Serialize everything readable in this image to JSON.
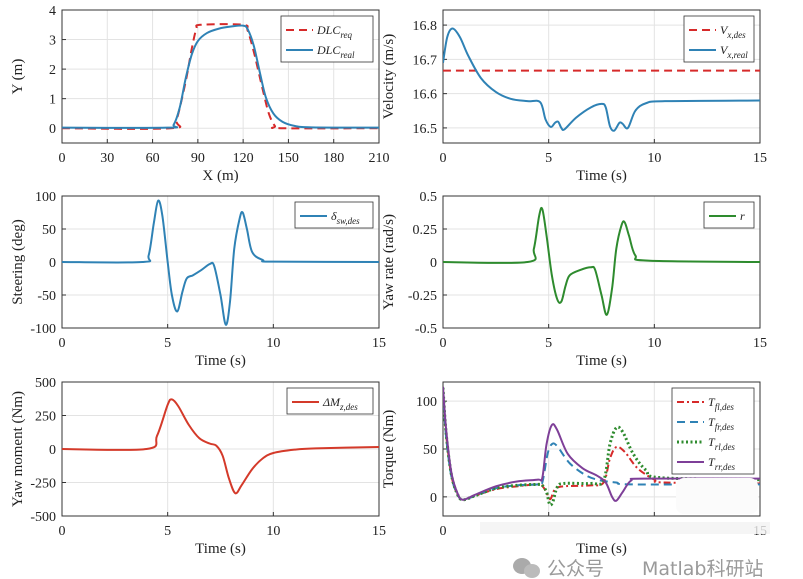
{
  "chart_data": [
    {
      "type": "line",
      "xlabel": "X (m)",
      "ylabel": "Y (m)",
      "xlim": [
        0,
        210
      ],
      "ylim": [
        -0.5,
        4
      ],
      "xticks": [
        0,
        30,
        60,
        90,
        120,
        150,
        180,
        210
      ],
      "yticks": [
        0,
        1,
        2,
        3,
        4
      ],
      "grid": true,
      "legend": "top-right",
      "series": [
        {
          "name": "DLC",
          "sub": "req",
          "color": "#d62a2a",
          "style": "dashed",
          "points": [
            [
              0,
              0
            ],
            [
              72,
              0
            ],
            [
              76,
              0.3
            ],
            [
              82,
              1.6
            ],
            [
              86,
              2.7
            ],
            [
              89,
              3.35
            ],
            [
              92,
              3.5
            ],
            [
              120,
              3.5
            ],
            [
              123,
              3.3
            ],
            [
              127,
              2.6
            ],
            [
              133,
              1.3
            ],
            [
              137,
              0.5
            ],
            [
              141,
              0.08
            ],
            [
              145,
              0
            ],
            [
              210,
              0
            ]
          ]
        },
        {
          "name": "DLC",
          "sub": "real",
          "color": "#2f82b5",
          "style": "solid",
          "points": [
            [
              0,
              0.02
            ],
            [
              70,
              0.02
            ],
            [
              74,
              0.12
            ],
            [
              78,
              0.7
            ],
            [
              82,
              1.7
            ],
            [
              86,
              2.5
            ],
            [
              90,
              2.95
            ],
            [
              96,
              3.22
            ],
            [
              104,
              3.37
            ],
            [
              112,
              3.44
            ],
            [
              120,
              3.47
            ],
            [
              123,
              3.35
            ],
            [
              127,
              2.8
            ],
            [
              131,
              1.9
            ],
            [
              135,
              1.05
            ],
            [
              140,
              0.5
            ],
            [
              146,
              0.22
            ],
            [
              154,
              0.08
            ],
            [
              165,
              0.03
            ],
            [
              210,
              0.02
            ]
          ]
        }
      ]
    },
    {
      "type": "line",
      "xlabel": "Time (s)",
      "ylabel": "Velocity (m/s)",
      "xlim": [
        0,
        15
      ],
      "ylim": [
        16.456,
        16.844
      ],
      "xticks": [
        0,
        5,
        10,
        15
      ],
      "yticks": [
        16.5,
        16.6,
        16.7,
        16.8
      ],
      "grid": true,
      "legend": "top-right",
      "series": [
        {
          "name": "V",
          "sub": "x,des",
          "color": "#d62a2a",
          "style": "dashed",
          "points": [
            [
              0,
              16.667
            ],
            [
              15,
              16.667
            ]
          ]
        },
        {
          "name": "V",
          "sub": "x,real",
          "color": "#2f82b5",
          "style": "solid",
          "points": [
            [
              0,
              16.69
            ],
            [
              0.2,
              16.765
            ],
            [
              0.45,
              16.79
            ],
            [
              0.8,
              16.765
            ],
            [
              1.2,
              16.71
            ],
            [
              1.8,
              16.645
            ],
            [
              2.5,
              16.605
            ],
            [
              3.2,
              16.585
            ],
            [
              4,
              16.578
            ],
            [
              4.6,
              16.575
            ],
            [
              4.85,
              16.525
            ],
            [
              5.1,
              16.503
            ],
            [
              5.3,
              16.515
            ],
            [
              5.45,
              16.518
            ],
            [
              5.6,
              16.5
            ],
            [
              5.75,
              16.496
            ],
            [
              6.3,
              16.53
            ],
            [
              7,
              16.56
            ],
            [
              7.5,
              16.57
            ],
            [
              7.7,
              16.56
            ],
            [
              7.9,
              16.505
            ],
            [
              8.1,
              16.492
            ],
            [
              8.35,
              16.515
            ],
            [
              8.5,
              16.512
            ],
            [
              8.75,
              16.5
            ],
            [
              9.1,
              16.55
            ],
            [
              9.6,
              16.572
            ],
            [
              10.5,
              16.578
            ],
            [
              15,
              16.58
            ]
          ]
        }
      ]
    },
    {
      "type": "line",
      "xlabel": "Time (s)",
      "ylabel": "Steering (deg)",
      "xlim": [
        0,
        15
      ],
      "ylim": [
        -100,
        100
      ],
      "xticks": [
        0,
        5,
        10,
        15
      ],
      "yticks": [
        -100,
        -50,
        0,
        50,
        100
      ],
      "grid": true,
      "legend": "top-right",
      "series": [
        {
          "name": "δ",
          "sub": "sw,des",
          "color": "#2f82b5",
          "style": "solid",
          "points": [
            [
              0,
              0
            ],
            [
              3.8,
              0
            ],
            [
              4.1,
              10
            ],
            [
              4.35,
              60
            ],
            [
              4.55,
              93
            ],
            [
              4.75,
              70
            ],
            [
              5,
              0
            ],
            [
              5.2,
              -50
            ],
            [
              5.45,
              -75
            ],
            [
              5.7,
              -45
            ],
            [
              5.9,
              -25
            ],
            [
              6.2,
              -20
            ],
            [
              6.6,
              -12
            ],
            [
              7,
              -3
            ],
            [
              7.2,
              -6
            ],
            [
              7.5,
              -50
            ],
            [
              7.75,
              -95
            ],
            [
              7.95,
              -60
            ],
            [
              8.15,
              20
            ],
            [
              8.4,
              65
            ],
            [
              8.55,
              75
            ],
            [
              8.75,
              50
            ],
            [
              9,
              15
            ],
            [
              9.5,
              3
            ],
            [
              10,
              0.5
            ],
            [
              15,
              0
            ]
          ]
        }
      ]
    },
    {
      "type": "line",
      "xlabel": "Time (s)",
      "ylabel": "Yaw rate (rad/s)",
      "xlim": [
        0,
        15
      ],
      "ylim": [
        -0.5,
        0.5
      ],
      "xticks": [
        0,
        5,
        10,
        15
      ],
      "yticks": [
        -0.5,
        -0.25,
        0,
        0.25,
        0.5
      ],
      "grid": true,
      "legend": "top-right",
      "series": [
        {
          "name": "r",
          "sub": "",
          "color": "#2e8b2e",
          "style": "solid",
          "points": [
            [
              0,
              0
            ],
            [
              4,
              0
            ],
            [
              4.3,
              0.1
            ],
            [
              4.55,
              0.35
            ],
            [
              4.7,
              0.4
            ],
            [
              4.9,
              0.2
            ],
            [
              5.15,
              -0.1
            ],
            [
              5.4,
              -0.28
            ],
            [
              5.6,
              -0.3
            ],
            [
              5.8,
              -0.18
            ],
            [
              6,
              -0.1
            ],
            [
              6.5,
              -0.06
            ],
            [
              7,
              -0.04
            ],
            [
              7.2,
              -0.06
            ],
            [
              7.5,
              -0.25
            ],
            [
              7.75,
              -0.4
            ],
            [
              8,
              -0.2
            ],
            [
              8.2,
              0.1
            ],
            [
              8.45,
              0.28
            ],
            [
              8.6,
              0.3
            ],
            [
              8.8,
              0.2
            ],
            [
              9.1,
              0.05
            ],
            [
              9.7,
              0.01
            ],
            [
              15,
              0
            ]
          ]
        }
      ]
    },
    {
      "type": "line",
      "xlabel": "Time (s)",
      "ylabel": "Yaw moment (Nm)",
      "xlim": [
        0,
        15
      ],
      "ylim": [
        -500,
        500
      ],
      "xticks": [
        0,
        5,
        10,
        15
      ],
      "yticks": [
        -500,
        -250,
        0,
        250,
        500
      ],
      "grid": true,
      "legend": "top-right",
      "series": [
        {
          "name": "ΔM",
          "sub": "z,des",
          "color": "#d43a2a",
          "style": "solid",
          "points": [
            [
              0,
              0
            ],
            [
              4,
              0
            ],
            [
              4.5,
              100
            ],
            [
              5,
              330
            ],
            [
              5.2,
              370
            ],
            [
              5.5,
              320
            ],
            [
              6,
              180
            ],
            [
              6.5,
              80
            ],
            [
              7,
              40
            ],
            [
              7.3,
              25
            ],
            [
              7.6,
              -50
            ],
            [
              7.9,
              -220
            ],
            [
              8.2,
              -330
            ],
            [
              8.5,
              -270
            ],
            [
              9,
              -150
            ],
            [
              9.5,
              -70
            ],
            [
              10,
              -30
            ],
            [
              11,
              -5
            ],
            [
              12,
              5
            ],
            [
              15,
              15
            ]
          ]
        }
      ]
    },
    {
      "type": "line",
      "xlabel": "Time (s)",
      "ylabel": "Torque (Nm)",
      "xlim": [
        0,
        15
      ],
      "ylim": [
        -20,
        120
      ],
      "xticks": [
        0,
        5,
        10,
        15
      ],
      "xtick_labels": [
        "0",
        "",
        "",
        "15"
      ],
      "yticks": [
        0,
        50,
        100
      ],
      "grid": true,
      "legend": "top-right",
      "series": [
        {
          "name": "T",
          "sub": "fl,des",
          "color": "#d62a2a",
          "style": "dashdot",
          "points": [
            [
              0,
              112
            ],
            [
              0.15,
              65
            ],
            [
              0.4,
              22
            ],
            [
              0.7,
              2
            ],
            [
              0.95,
              -3
            ],
            [
              1.5,
              1
            ],
            [
              2.5,
              8
            ],
            [
              3.5,
              11
            ],
            [
              4.5,
              13
            ],
            [
              4.75,
              10
            ],
            [
              5,
              0
            ],
            [
              5.1,
              -2
            ],
            [
              5.3,
              8
            ],
            [
              5.7,
              11
            ],
            [
              7,
              12
            ],
            [
              7.6,
              15
            ],
            [
              7.9,
              40
            ],
            [
              8.2,
              52
            ],
            [
              8.6,
              47
            ],
            [
              9.2,
              30
            ],
            [
              10,
              18
            ],
            [
              10.5,
              15
            ],
            [
              15,
              14
            ]
          ]
        },
        {
          "name": "T",
          "sub": "fr,des",
          "color": "#2f82b5",
          "style": "dashed",
          "points": [
            [
              0,
              110
            ],
            [
              0.15,
              62
            ],
            [
              0.4,
              21
            ],
            [
              0.7,
              2
            ],
            [
              0.95,
              -3
            ],
            [
              1.5,
              1
            ],
            [
              2.5,
              9
            ],
            [
              3.5,
              12
            ],
            [
              4.5,
              13
            ],
            [
              4.7,
              15
            ],
            [
              4.95,
              45
            ],
            [
              5.15,
              55
            ],
            [
              5.4,
              53
            ],
            [
              6,
              35
            ],
            [
              6.8,
              22
            ],
            [
              7.5,
              17
            ],
            [
              8.2,
              15
            ],
            [
              9,
              13
            ],
            [
              15,
              13
            ]
          ]
        },
        {
          "name": "T",
          "sub": "rl,des",
          "color": "#2e8b2e",
          "style": "dotted",
          "points": [
            [
              0,
              114
            ],
            [
              0.15,
              66
            ],
            [
              0.4,
              23
            ],
            [
              0.7,
              2
            ],
            [
              0.95,
              -3
            ],
            [
              1.5,
              1
            ],
            [
              2.5,
              9
            ],
            [
              3.5,
              12
            ],
            [
              4.5,
              13
            ],
            [
              4.7,
              12
            ],
            [
              4.9,
              5
            ],
            [
              5.05,
              -8
            ],
            [
              5.2,
              -5
            ],
            [
              5.4,
              10
            ],
            [
              5.7,
              14
            ],
            [
              7,
              14
            ],
            [
              7.6,
              17
            ],
            [
              7.9,
              55
            ],
            [
              8.2,
              72
            ],
            [
              8.5,
              68
            ],
            [
              9,
              45
            ],
            [
              9.6,
              28
            ],
            [
              10.3,
              20
            ],
            [
              15,
              18
            ]
          ]
        },
        {
          "name": "T",
          "sub": "rr,des",
          "color": "#7e3f98",
          "style": "solid",
          "points": [
            [
              0,
              115
            ],
            [
              0.15,
              70
            ],
            [
              0.4,
              25
            ],
            [
              0.7,
              3
            ],
            [
              0.95,
              -3
            ],
            [
              1.5,
              2
            ],
            [
              2.5,
              11
            ],
            [
              3.5,
              16
            ],
            [
              4.5,
              18
            ],
            [
              4.7,
              20
            ],
            [
              4.9,
              55
            ],
            [
              5.15,
              75
            ],
            [
              5.4,
              70
            ],
            [
              5.9,
              45
            ],
            [
              6.6,
              30
            ],
            [
              7.3,
              22
            ],
            [
              7.7,
              15
            ],
            [
              8,
              0
            ],
            [
              8.2,
              -4
            ],
            [
              8.5,
              5
            ],
            [
              8.9,
              17
            ],
            [
              9.5,
              19
            ],
            [
              15,
              19
            ]
          ]
        }
      ]
    }
  ],
  "watermark": {
    "prefix": "公众号",
    "suffix": "Matlab科研站"
  }
}
